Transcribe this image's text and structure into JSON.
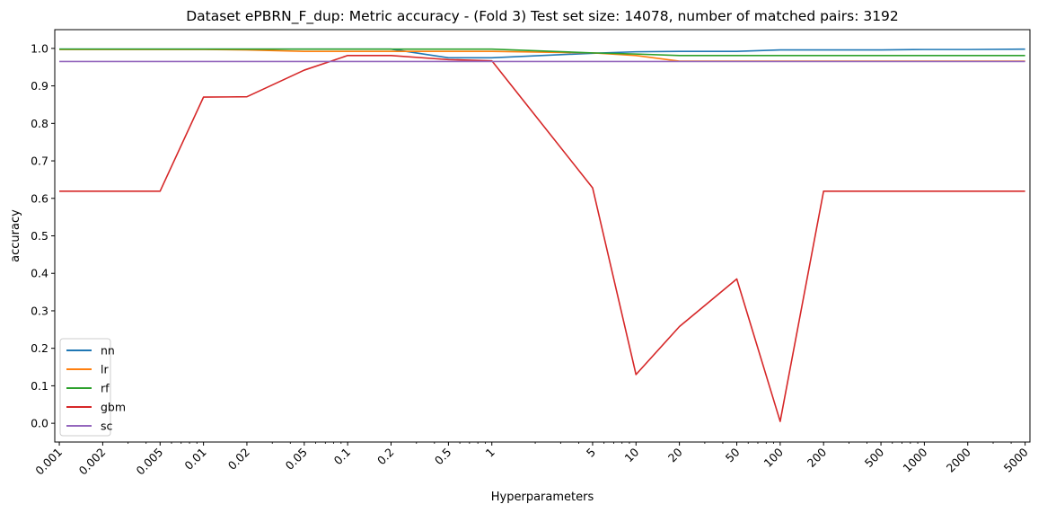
{
  "chart_data": {
    "type": "line",
    "title": "Dataset ePBRN_F_dup: Metric accuracy - (Fold 3) Test set size: 14078, number of matched pairs: 3192",
    "xlabel": "Hyperparameters",
    "ylabel": "accuracy",
    "x_scale": "log",
    "xlim": [
      0.00093,
      5400
    ],
    "ylim": [
      -0.05,
      1.05
    ],
    "x_ticks": [
      0.001,
      0.002,
      0.005,
      0.01,
      0.02,
      0.05,
      0.1,
      0.2,
      0.5,
      1,
      5,
      10,
      20,
      50,
      100,
      200,
      500,
      1000,
      2000,
      5000
    ],
    "x_tick_labels": [
      "0.001",
      "0.002",
      "0.005",
      "0.01",
      "0.02",
      "0.05",
      "0.1",
      "0.2",
      "0.5",
      "1",
      "5",
      "10",
      "20",
      "50",
      "100",
      "200",
      "500",
      "1000",
      "2000",
      "5000"
    ],
    "y_ticks": [
      0.0,
      0.1,
      0.2,
      0.3,
      0.4,
      0.5,
      0.6,
      0.7,
      0.8,
      0.9,
      1.0
    ],
    "y_tick_labels": [
      "0.0",
      "0.1",
      "0.2",
      "0.3",
      "0.4",
      "0.5",
      "0.6",
      "0.7",
      "0.8",
      "0.9",
      "1.0"
    ],
    "grid": false,
    "legend_position": "lower-left",
    "x": [
      0.001,
      0.002,
      0.005,
      0.01,
      0.02,
      0.05,
      0.1,
      0.2,
      0.5,
      1,
      5,
      10,
      20,
      50,
      100,
      200,
      500,
      1000,
      2000,
      5000
    ],
    "series": [
      {
        "name": "nn",
        "color": "#1f77b4",
        "values": [
          0.998,
          0.998,
          0.998,
          0.998,
          0.998,
          0.998,
          0.998,
          0.998,
          0.975,
          0.975,
          0.987,
          0.991,
          0.992,
          0.992,
          0.996,
          0.996,
          0.996,
          0.997,
          0.997,
          0.998
        ]
      },
      {
        "name": "lr",
        "color": "#ff7f0e",
        "values": [
          0.997,
          0.997,
          0.997,
          0.997,
          0.996,
          0.992,
          0.992,
          0.992,
          0.992,
          0.992,
          0.988,
          0.981,
          0.966,
          0.966,
          0.966,
          0.966,
          0.966,
          0.966,
          0.966,
          0.966
        ]
      },
      {
        "name": "rf",
        "color": "#2ca02c",
        "values": [
          0.998,
          0.998,
          0.998,
          0.998,
          0.998,
          0.998,
          0.998,
          0.998,
          0.998,
          0.998,
          0.988,
          0.985,
          0.981,
          0.981,
          0.981,
          0.981,
          0.981,
          0.981,
          0.981,
          0.981
        ]
      },
      {
        "name": "gbm",
        "color": "#d62728",
        "values": [
          0.619,
          0.619,
          0.619,
          0.87,
          0.871,
          0.942,
          0.981,
          0.981,
          0.97,
          0.967,
          0.628,
          0.13,
          0.258,
          0.385,
          0.005,
          0.619,
          0.619,
          0.619,
          0.619,
          0.619
        ]
      },
      {
        "name": "sc",
        "color": "#9467bd",
        "values": [
          0.965,
          0.965,
          0.965,
          0.965,
          0.965,
          0.965,
          0.965,
          0.965,
          0.965,
          0.965,
          0.965,
          0.965,
          0.965,
          0.965,
          0.965,
          0.965,
          0.965,
          0.965,
          0.965,
          0.965
        ]
      }
    ]
  }
}
